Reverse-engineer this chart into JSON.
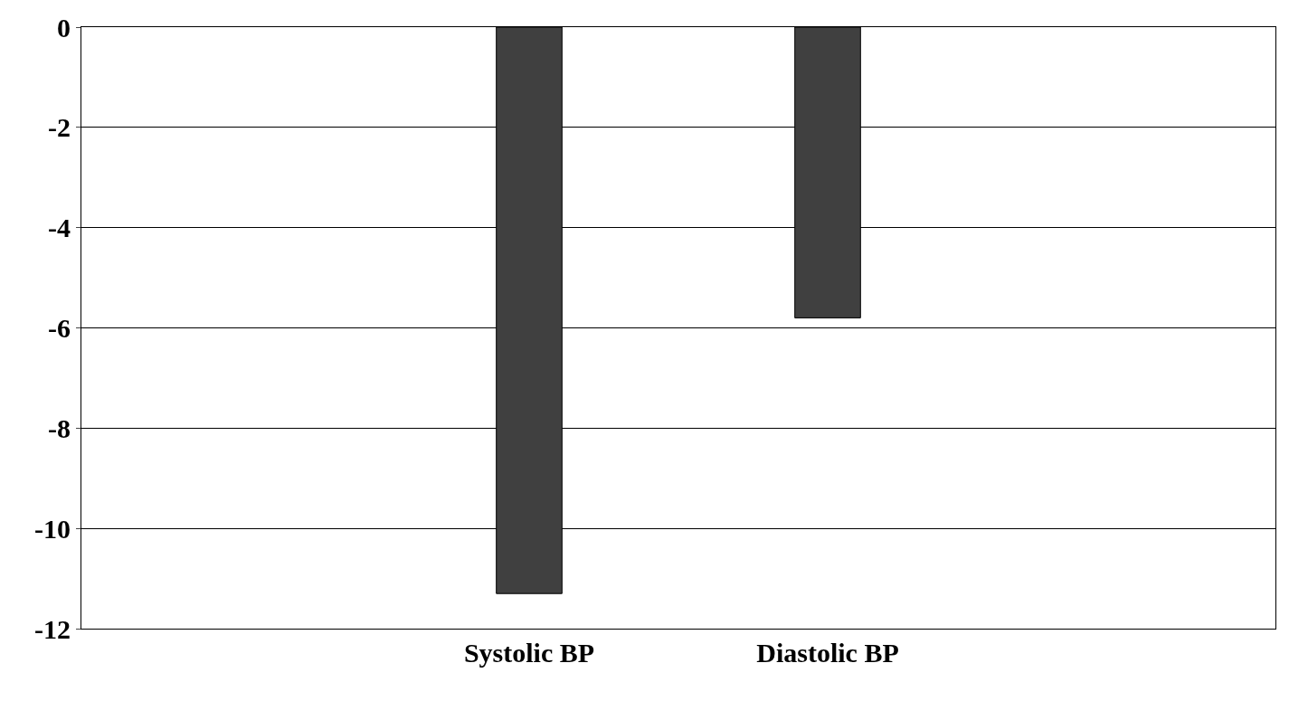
{
  "chart_data": {
    "type": "bar",
    "categories": [
      null,
      "Systolic BP",
      "Diastolic BP",
      null
    ],
    "values": [
      null,
      -11.3,
      -5.8,
      null
    ],
    "color": "#404040",
    "ylim": [
      -12,
      0
    ],
    "yticks": [
      0,
      -2,
      -4,
      -6,
      -8,
      -10,
      -12
    ],
    "grid": "y"
  }
}
